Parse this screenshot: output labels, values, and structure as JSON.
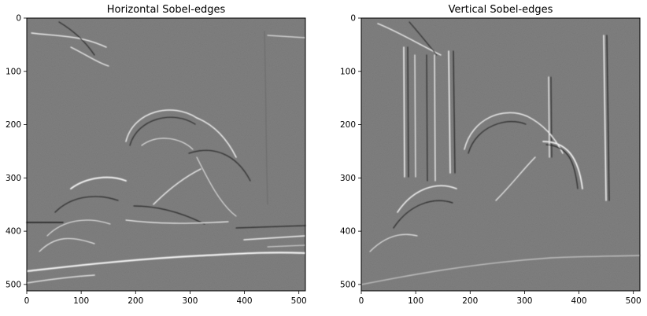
{
  "panels": [
    {
      "title": "Horizontal Sobel-edges",
      "image": "grayscale horizontal sobel edge map of a person lying on a bed",
      "xticks": [
        0,
        100,
        200,
        300,
        400,
        500
      ],
      "yticks": [
        0,
        100,
        200,
        300,
        400,
        500
      ],
      "xlim": [
        0,
        512
      ],
      "ylim": [
        512,
        0
      ]
    },
    {
      "title": "Vertical Sobel-edges",
      "image": "grayscale vertical sobel edge map of a person lying on a bed",
      "xticks": [
        0,
        100,
        200,
        300,
        400,
        500
      ],
      "yticks": [
        0,
        100,
        200,
        300,
        400,
        500
      ],
      "xlim": [
        0,
        512
      ],
      "ylim": [
        512,
        0
      ]
    }
  ],
  "colors": {
    "background": "#808080",
    "highlight": "#f2f2f2",
    "shadow": "#262626"
  }
}
